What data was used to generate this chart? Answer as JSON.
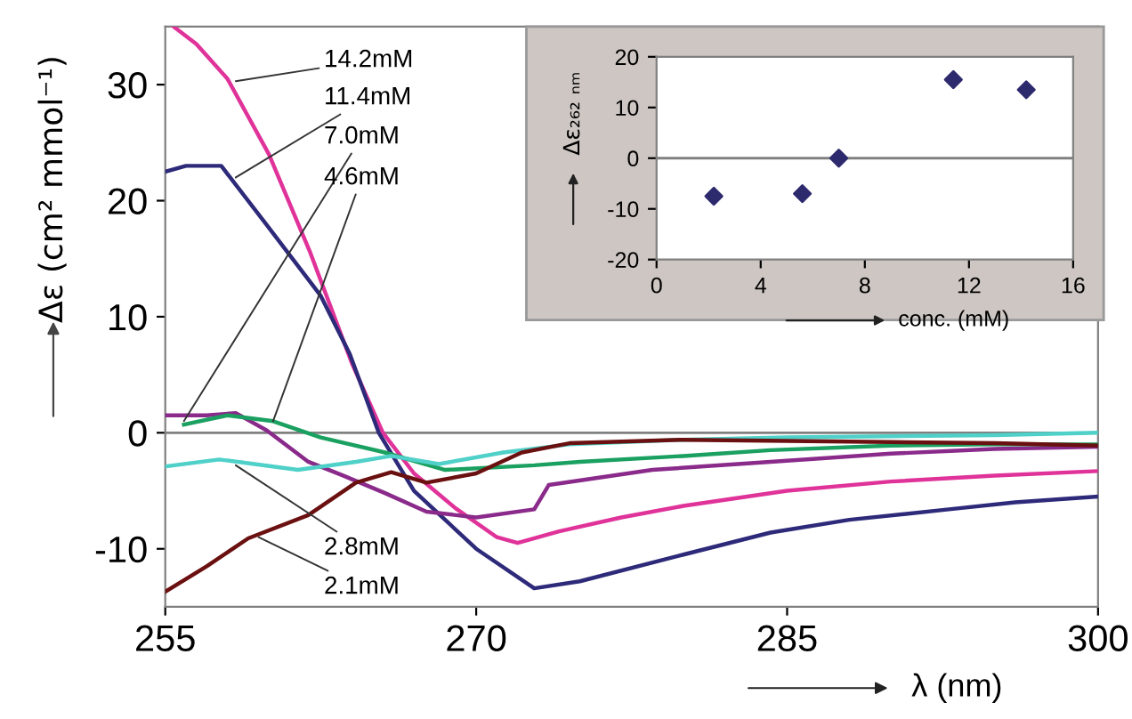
{
  "chart_data": [
    {
      "type": "line",
      "xlabel": "λ (nm)",
      "ylabel": "Δε (cm² mmol⁻¹)",
      "xlim": [
        255,
        300
      ],
      "ylim": [
        -15,
        35
      ],
      "xticks": [
        255,
        270,
        285,
        300
      ],
      "yticks": [
        -10,
        0,
        10,
        20,
        30
      ],
      "series": [
        {
          "color": "#e0339a",
          "x": [
            255.4,
            256.5,
            258,
            260,
            262,
            264,
            265.5,
            267,
            269,
            271,
            272,
            274,
            277,
            280,
            285,
            290,
            295,
            300
          ],
          "values": [
            35,
            33.5,
            30.5,
            24,
            15.5,
            6,
            0,
            -3.5,
            -6.5,
            -9,
            -9.5,
            -8.5,
            -7.3,
            -6.3,
            -5,
            -4.2,
            -3.7,
            -3.3
          ]
        },
        {
          "color": "#2e2a7a",
          "x": [
            255,
            256,
            257.7,
            260.2,
            262.5,
            263.9,
            265.3,
            267,
            270,
            272.8,
            275,
            280,
            284.2,
            288,
            292.8,
            296,
            300
          ],
          "values": [
            22.5,
            23,
            23,
            17.2,
            11.8,
            6.8,
            0,
            -5,
            -10,
            -13.4,
            -12.8,
            -10.5,
            -8.6,
            -7.5,
            -6.6,
            -6,
            -5.5
          ]
        },
        {
          "color": "#8a2a8a",
          "x": [
            255,
            257,
            258.4,
            259.9,
            261.9,
            263.6,
            265.6,
            267.6,
            270,
            272.8,
            273.5,
            278.5,
            284.2,
            290,
            295,
            300
          ],
          "values": [
            1.5,
            1.5,
            1.7,
            0.2,
            -2.5,
            -3.7,
            -5.2,
            -6.8,
            -7.3,
            -6.6,
            -4.5,
            -3.2,
            -2.5,
            -1.8,
            -1.4,
            -1.2
          ]
        },
        {
          "color": "#1aa060",
          "x": [
            255.9,
            258,
            260.2,
            262.5,
            265.6,
            268.5,
            272.8,
            275,
            280,
            284.2,
            290,
            295,
            300
          ],
          "values": [
            0.7,
            1.5,
            1,
            -0.4,
            -1.7,
            -3.2,
            -2.8,
            -2.5,
            -2,
            -1.5,
            -1.1,
            -1,
            -1
          ]
        },
        {
          "color": "#4fd0c8",
          "x": [
            255,
            257.6,
            261.4,
            264.2,
            265.9,
            268.2,
            271.3,
            274.5,
            280,
            285,
            290,
            295,
            300
          ],
          "values": [
            -2.9,
            -2.3,
            -3.2,
            -2.5,
            -2,
            -2.7,
            -1.7,
            -1,
            -0.6,
            -0.4,
            -0.3,
            -0.2,
            0
          ]
        },
        {
          "color": "#6b1010",
          "x": [
            255,
            257,
            259,
            261.9,
            264.2,
            265.9,
            267.6,
            270,
            272.2,
            274.5,
            280,
            285,
            290,
            295,
            300
          ],
          "values": [
            -13.7,
            -11.5,
            -9.1,
            -7.1,
            -4.3,
            -3.4,
            -4.3,
            -3.5,
            -1.7,
            -0.9,
            -0.6,
            -0.7,
            -0.8,
            -0.9,
            -1.1
          ]
        }
      ],
      "ref_lines": [
        {
          "axis": "y",
          "value": 0,
          "color": "#808080"
        }
      ],
      "annotations": [
        {
          "text": "14.2mM",
          "x": 258.4,
          "y": 30.3
        },
        {
          "text": "11.4mM",
          "x": 258.4,
          "y": 22
        },
        {
          "text": "7.0mM",
          "x": 255.9,
          "y": 1
        },
        {
          "text": "4.6mM",
          "x": 260.2,
          "y": 1
        },
        {
          "text": "2.8mM",
          "x": 258.4,
          "y": -2.8
        },
        {
          "text": "2.1mM",
          "x": 259.5,
          "y": -9
        }
      ]
    },
    {
      "type": "scatter",
      "xlabel": "conc. (mM)",
      "ylabel": "Δε₂₆₂ ₙₘ",
      "xlim": [
        0,
        16
      ],
      "ylim": [
        -20,
        20
      ],
      "xticks": [
        0,
        4,
        8,
        12,
        16
      ],
      "yticks": [
        -20,
        -10,
        0,
        10,
        20
      ],
      "marker": "diamond",
      "series": [
        {
          "color": "#2e2a6e",
          "x": [
            2.2,
            5.6,
            7.0,
            11.4,
            14.2
          ],
          "values": [
            -7.5,
            -7,
            0,
            15.5,
            13.5
          ]
        }
      ],
      "ref_lines": [
        {
          "axis": "y",
          "value": 0,
          "color": "#808080"
        }
      ]
    }
  ]
}
